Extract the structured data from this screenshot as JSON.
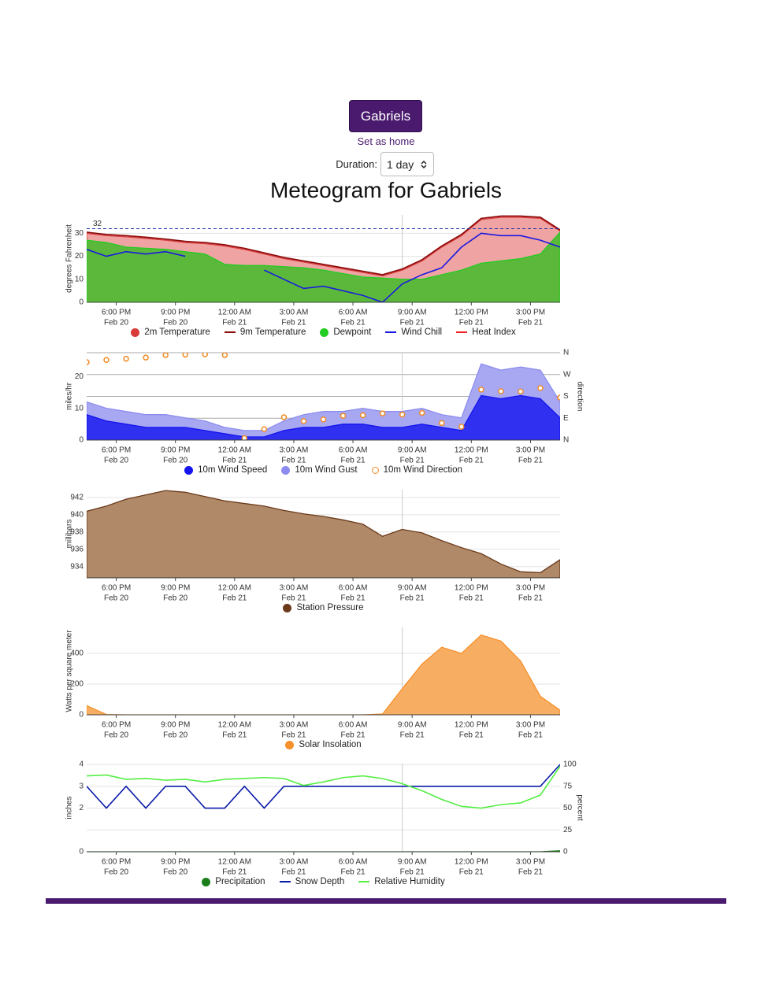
{
  "header": {
    "button": "Gabriels",
    "link": "Set as home",
    "duration_label": "Duration:",
    "duration_value": "1 day",
    "title": "Meteogram for Gabriels"
  },
  "time": {
    "x": [
      "Feb 20 16:30",
      "Feb 20 17:30",
      "Feb 20 18:30",
      "Feb 20 19:30",
      "Feb 20 20:30",
      "Feb 20 21:30",
      "Feb 20 22:30",
      "Feb 20 23:30",
      "Feb 21 00:30",
      "Feb 21 01:30",
      "Feb 21 02:30",
      "Feb 21 03:30",
      "Feb 21 04:30",
      "Feb 21 05:30",
      "Feb 21 06:30",
      "Feb 21 07:30",
      "Feb 21 08:30",
      "Feb 21 09:30",
      "Feb 21 10:30",
      "Feb 21 11:30",
      "Feb 21 12:30",
      "Feb 21 13:30",
      "Feb 21 14:30",
      "Feb 21 15:30",
      "Feb 21 16:30"
    ],
    "xlim": [
      "Feb 20 16:30",
      "Feb 21 16:30"
    ],
    "xticks": [
      {
        "value": "Feb 20 18:00",
        "label": "6:00 PM",
        "date": "Feb 20"
      },
      {
        "value": "Feb 20 21:00",
        "label": "9:00 PM",
        "date": "Feb 20"
      },
      {
        "value": "Feb 21 00:00",
        "label": "12:00 AM",
        "date": "Feb 21"
      },
      {
        "value": "Feb 21 03:00",
        "label": "3:00 AM",
        "date": "Feb 21"
      },
      {
        "value": "Feb 21 06:00",
        "label": "6:00 AM",
        "date": "Feb 21"
      },
      {
        "value": "Feb 21 09:00",
        "label": "9:00 AM",
        "date": "Feb 21"
      },
      {
        "value": "Feb 21 12:00",
        "label": "12:00 PM",
        "date": "Feb 21"
      },
      {
        "value": "Feb 21 15:00",
        "label": "3:00 PM",
        "date": "Feb 21"
      }
    ],
    "now": "Feb 21 08:30"
  },
  "chart_data": [
    {
      "type": "line",
      "ylabel": "degrees Fahrenheit",
      "ylim": [
        0,
        38
      ],
      "yticks": [
        0,
        10,
        20,
        30
      ],
      "grid": true,
      "threshold": 32,
      "series": [
        {
          "name": "2m Temperature",
          "kind": "area",
          "color": "#d93a3a",
          "fill": "#f0a3a3",
          "values": [
            30,
            29,
            28.5,
            27.8,
            27,
            26,
            25.5,
            24.5,
            23,
            21,
            19,
            17.5,
            16,
            14.5,
            13,
            11.5,
            14,
            18,
            24,
            29,
            36,
            37,
            37,
            36.5,
            31
          ]
        },
        {
          "name": "9m Temperature",
          "kind": "line",
          "color": "#8b0a0a",
          "values": [
            30.5,
            29.5,
            29,
            28.3,
            27.5,
            26.5,
            26,
            25,
            23.5,
            21.5,
            19.5,
            18,
            16.5,
            15,
            13.5,
            12,
            14.5,
            18.5,
            24.5,
            29.5,
            36.5,
            37.5,
            37.5,
            37,
            31.5
          ]
        },
        {
          "name": "Dewpoint",
          "kind": "area",
          "color": "#22cc22",
          "fill": "#5cb83a",
          "values": [
            27,
            26,
            24,
            23.5,
            23,
            22,
            21,
            16.5,
            16,
            16,
            15.5,
            15,
            14,
            12.5,
            11,
            10.5,
            10,
            10,
            12,
            14,
            17,
            18,
            19,
            21,
            30.5
          ]
        },
        {
          "name": "Wind Chill",
          "kind": "line",
          "color": "#1a1ae0",
          "values": [
            23,
            20,
            22,
            21,
            22,
            20,
            null,
            null,
            null,
            14,
            10,
            6,
            7,
            5,
            3,
            0,
            8,
            12,
            15,
            24,
            30,
            29,
            29,
            27,
            24
          ]
        },
        {
          "name": "Heat Index",
          "kind": "line",
          "color": "#ee2222",
          "values": [
            null,
            null,
            null,
            null,
            null,
            null,
            null,
            null,
            null,
            null,
            null,
            null,
            null,
            null,
            null,
            null,
            null,
            null,
            null,
            null,
            null,
            null,
            null,
            null,
            null
          ]
        }
      ]
    },
    {
      "type": "line",
      "ylabel": "miles/hr",
      "y2label": "direction",
      "ylim": [
        0,
        27.5
      ],
      "yticks": [
        0,
        10,
        20
      ],
      "y2lim": [
        0,
        360
      ],
      "y2ticks": [
        {
          "value": 0,
          "label": "N"
        },
        {
          "value": 90,
          "label": "E"
        },
        {
          "value": 180,
          "label": "S"
        },
        {
          "value": 270,
          "label": "W"
        },
        {
          "value": 360,
          "label": "N"
        }
      ],
      "grid": true,
      "series": [
        {
          "name": "10m Wind Speed",
          "kind": "area",
          "color": "#1515ee",
          "fill": "#3030f0",
          "values": [
            8,
            6,
            5,
            4,
            4,
            4,
            3,
            2,
            1,
            1,
            3,
            4,
            4,
            5,
            5,
            4,
            4,
            5,
            4,
            3,
            14,
            13,
            14,
            13,
            7
          ]
        },
        {
          "name": "10m Wind Gust",
          "kind": "area",
          "color": "#8c8cf0",
          "fill": "#a8a8f2",
          "values": [
            12,
            10,
            9,
            8,
            8,
            7,
            6,
            4,
            3,
            3,
            6,
            8,
            9,
            9,
            10,
            9,
            9,
            10,
            8,
            7,
            24,
            22,
            23,
            22,
            12
          ]
        },
        {
          "name": "10m Wind Direction",
          "kind": "points",
          "axis": "y2",
          "color": "#f08a24",
          "values": [
            321,
            330,
            335,
            340,
            350,
            352,
            353,
            350,
            8,
            45,
            94,
            78,
            85,
            100,
            102,
            110,
            105,
            112,
            70,
            55,
            208,
            201,
            200,
            214,
            175
          ]
        }
      ]
    },
    {
      "type": "line",
      "ylabel": "millibars",
      "ylim": [
        932.7,
        942.9
      ],
      "yticks": [
        934,
        936,
        938,
        940,
        942
      ],
      "grid": true,
      "series": [
        {
          "name": "Station Pressure",
          "kind": "area",
          "color": "#6b3a1a",
          "fill": "#b08968",
          "values": [
            940.4,
            941,
            941.8,
            942.3,
            942.8,
            942.6,
            942.1,
            941.6,
            941.3,
            941,
            940.5,
            940.1,
            939.8,
            939.4,
            938.9,
            937.5,
            938.3,
            937.9,
            937,
            936.2,
            935.5,
            934.3,
            933.4,
            933.3,
            934.8
          ]
        }
      ]
    },
    {
      "type": "line",
      "ylabel": "Watts per square meter",
      "ylim": [
        0,
        569
      ],
      "yticks": [
        0,
        200,
        400
      ],
      "grid": true,
      "series": [
        {
          "name": "Solar Insolation",
          "kind": "area",
          "color": "#f5902a",
          "fill": "#f8ae62",
          "values": [
            60,
            2,
            0,
            0,
            0,
            0,
            0,
            0,
            0,
            0,
            0,
            0,
            0,
            0,
            0,
            5,
            170,
            330,
            440,
            400,
            520,
            480,
            350,
            120,
            30
          ]
        }
      ]
    },
    {
      "type": "line",
      "ylabel": "inches",
      "y2label": "percent",
      "ylim": [
        0,
        4.04
      ],
      "yticks": [
        0,
        2,
        3,
        4
      ],
      "y2lim": [
        0,
        101
      ],
      "y2ticks": [
        0,
        25,
        50,
        75,
        100
      ],
      "grid": true,
      "series": [
        {
          "name": "Precipitation",
          "kind": "area",
          "color": "#1a7f1a",
          "fill": "#1a7f1a",
          "values": [
            0,
            0,
            0,
            0,
            0,
            0,
            0,
            0,
            0,
            0,
            0,
            0,
            0,
            0,
            0,
            0,
            0,
            0,
            0,
            0,
            0,
            0,
            0,
            0,
            0.05
          ]
        },
        {
          "name": "Snow Depth",
          "kind": "line",
          "color": "#0a1aa8",
          "values": [
            3,
            2,
            3,
            2,
            3,
            3,
            2,
            2,
            3,
            2,
            3,
            3,
            3,
            3,
            3,
            3,
            3,
            3,
            3,
            3,
            3,
            3,
            3,
            3,
            4
          ]
        },
        {
          "name": "Relative Humidity",
          "kind": "line",
          "axis": "y2",
          "color": "#55ee44",
          "values": [
            87,
            88,
            83,
            84,
            82,
            83,
            80,
            83,
            84,
            85,
            84,
            76,
            80,
            85,
            87,
            84,
            78,
            70,
            60,
            52,
            50,
            54,
            56,
            65,
            98
          ]
        }
      ]
    }
  ]
}
